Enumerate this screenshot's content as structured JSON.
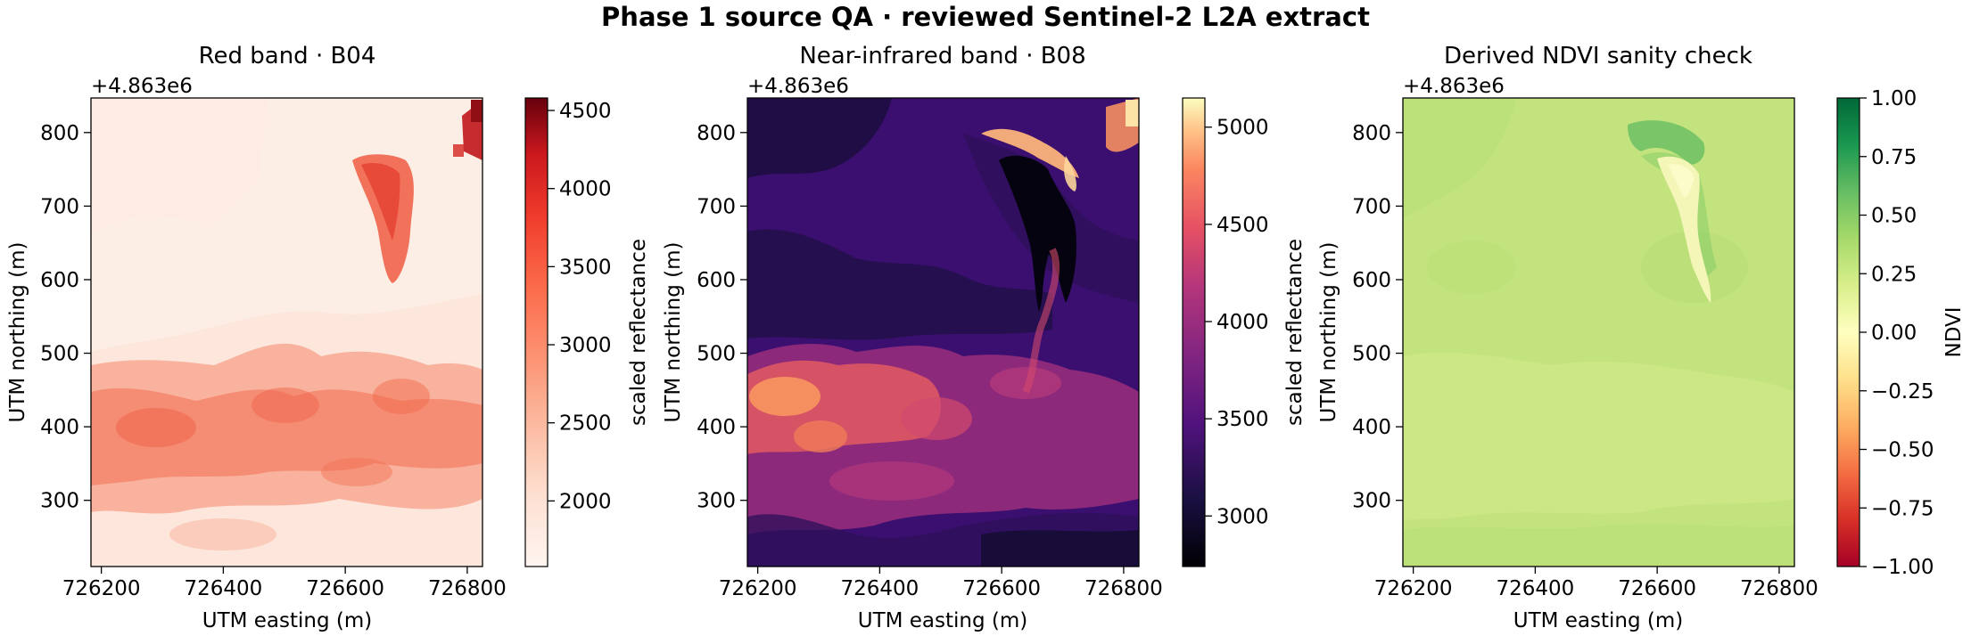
{
  "figure": {
    "title": "Phase 1 source QA · reviewed Sentinel-2 L2A extract"
  },
  "chart_data": [
    {
      "type": "heatmap",
      "title": "Red band · B04",
      "xlabel": "UTM easting (m)",
      "ylabel": "UTM northing (m)",
      "y_offset_label": "+4.863e6",
      "xlim": [
        726183,
        726825
      ],
      "ylim": [
        210,
        847
      ],
      "xticks": [
        "726200",
        "726400",
        "726600",
        "726800"
      ],
      "xtick_values": [
        726200,
        726400,
        726600,
        726800
      ],
      "yticks": [
        "300",
        "400",
        "500",
        "600",
        "700",
        "800"
      ],
      "ytick_values": [
        300,
        400,
        500,
        600,
        700,
        800
      ],
      "colormap": "Reds",
      "colorbar": {
        "label": "scaled reflectance",
        "range": [
          1580,
          4580
        ],
        "ticks": [
          "2000",
          "2500",
          "3000",
          "3500",
          "4000",
          "4500"
        ],
        "tick_values": [
          2000,
          2500,
          3000,
          3500,
          4000,
          4500
        ]
      },
      "value_range": [
        1600,
        4550
      ],
      "dominant_colors": [
        "#fde2d8",
        "#f1694c",
        "#c0161b",
        "#8a0f14"
      ]
    },
    {
      "type": "heatmap",
      "title": "Near-infrared band · B08",
      "xlabel": "UTM easting (m)",
      "ylabel": "UTM northing (m)",
      "y_offset_label": "+4.863e6",
      "xlim": [
        726183,
        726825
      ],
      "ylim": [
        210,
        847
      ],
      "xticks": [
        "726200",
        "726400",
        "726600",
        "726800"
      ],
      "xtick_values": [
        726200,
        726400,
        726600,
        726800
      ],
      "yticks": [
        "300",
        "400",
        "500",
        "600",
        "700",
        "800"
      ],
      "ytick_values": [
        300,
        400,
        500,
        600,
        700,
        800
      ],
      "colormap": "magma",
      "colorbar": {
        "label": "scaled reflectance",
        "range": [
          2740,
          5150
        ],
        "ticks": [
          "3000",
          "3500",
          "4000",
          "4500",
          "5000"
        ],
        "tick_values": [
          3000,
          3500,
          4000,
          4500,
          5000
        ]
      },
      "value_range": [
        2750,
        5150
      ],
      "dominant_colors": [
        "#0c0926",
        "#3b0f70",
        "#8c2981",
        "#de4968",
        "#fe9f6d",
        "#fcfdbf"
      ]
    },
    {
      "type": "heatmap",
      "title": "Derived NDVI sanity check",
      "xlabel": "UTM easting (m)",
      "ylabel": "UTM northing (m)",
      "y_offset_label": "+4.863e6",
      "xlim": [
        726183,
        726825
      ],
      "ylim": [
        210,
        847
      ],
      "xticks": [
        "726200",
        "726400",
        "726600",
        "726800"
      ],
      "xtick_values": [
        726200,
        726400,
        726600,
        726800
      ],
      "yticks": [
        "300",
        "400",
        "500",
        "600",
        "700",
        "800"
      ],
      "ytick_values": [
        300,
        400,
        500,
        600,
        700,
        800
      ],
      "colormap": "RdYlGn",
      "colorbar": {
        "label": "NDVI",
        "range": [
          -1.0,
          1.0
        ],
        "ticks": [
          "1.00",
          "0.75",
          "0.50",
          "0.25",
          "0.00",
          "−0.25",
          "−0.50",
          "−0.75",
          "−1.00"
        ],
        "tick_values": [
          1.0,
          0.75,
          0.5,
          0.25,
          0.0,
          -0.25,
          -0.5,
          -0.75,
          -1.0
        ]
      },
      "value_range": [
        0.05,
        0.5
      ],
      "dominant_colors": [
        "#b7dc77",
        "#c7e57d",
        "#f2f7b8",
        "#5aae61"
      ]
    }
  ]
}
